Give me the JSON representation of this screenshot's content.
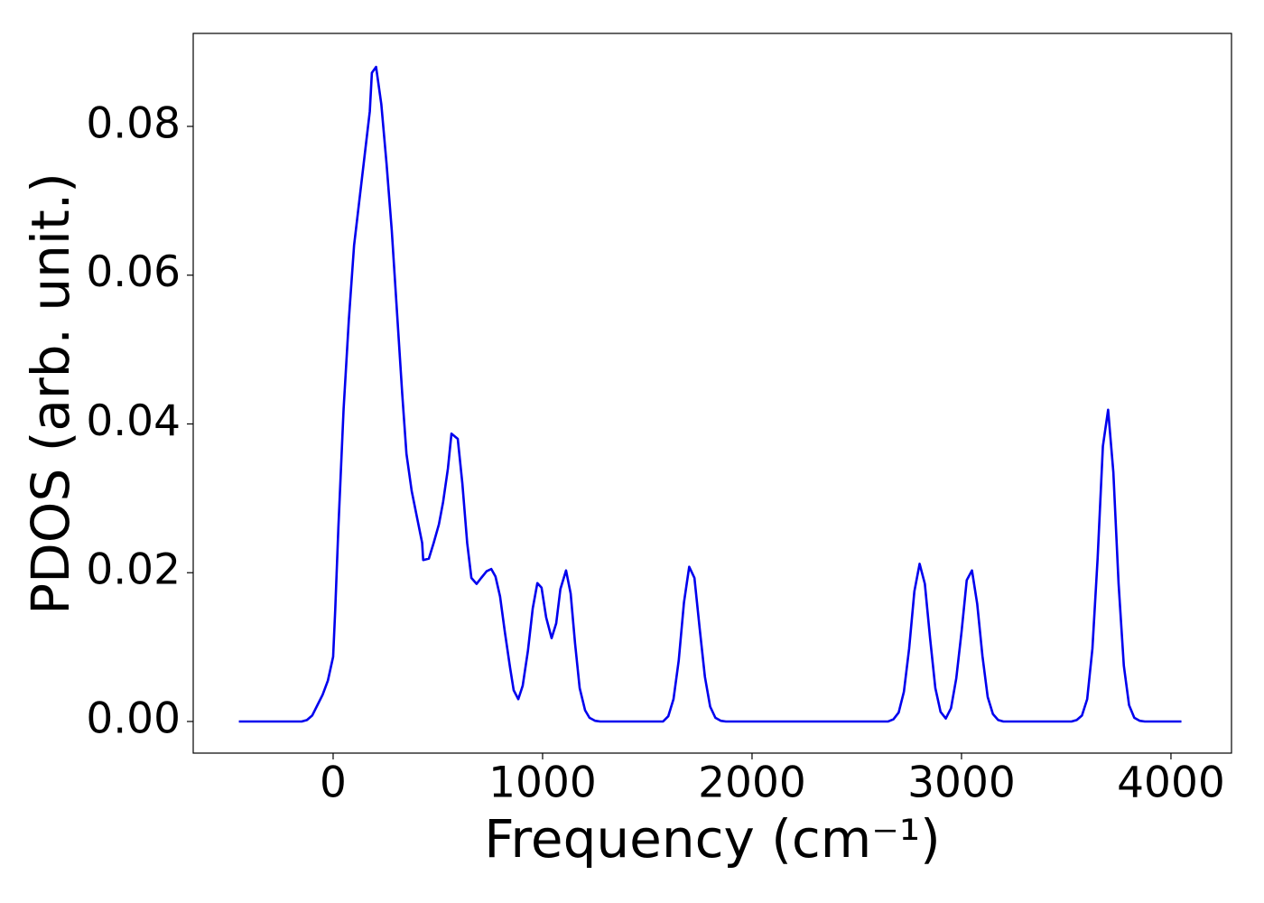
{
  "chart_data": {
    "type": "line",
    "xlabel": "Frequency (cm⁻¹)",
    "ylabel": "PDOS (arb. unit.)",
    "color": "#0000ee",
    "x": [
      -450,
      -150,
      -125,
      -100,
      -75,
      -50,
      -25,
      0,
      10,
      25,
      50,
      75,
      100,
      125,
      150,
      175,
      185,
      205,
      230,
      255,
      280,
      305,
      330,
      350,
      375,
      400,
      425,
      430,
      457,
      480,
      505,
      525,
      548,
      565,
      595,
      617,
      640,
      660,
      685,
      707,
      733,
      755,
      775,
      797,
      820,
      845,
      862,
      884,
      905,
      930,
      953,
      975,
      995,
      1017,
      1043,
      1065,
      1085,
      1112,
      1134,
      1155,
      1177,
      1203,
      1224,
      1250,
      1275,
      1575,
      1600,
      1625,
      1650,
      1675,
      1700,
      1725,
      1750,
      1775,
      1800,
      1825,
      1850,
      1875,
      2650,
      2675,
      2700,
      2725,
      2750,
      2775,
      2800,
      2825,
      2850,
      2875,
      2900,
      2925,
      2950,
      2975,
      3000,
      3025,
      3050,
      3075,
      3100,
      3125,
      3150,
      3175,
      3200,
      3525,
      3550,
      3575,
      3600,
      3625,
      3650,
      3675,
      3700,
      3725,
      3750,
      3775,
      3800,
      3825,
      3850,
      3875,
      4050
    ],
    "values": [
      0,
      0,
      0.0002,
      0.0008,
      0.0022,
      0.0036,
      0.0055,
      0.0087,
      0.015,
      0.026,
      0.042,
      0.054,
      0.064,
      0.07,
      0.076,
      0.082,
      0.0872,
      0.088,
      0.083,
      0.075,
      0.066,
      0.055,
      0.044,
      0.036,
      0.031,
      0.0275,
      0.024,
      0.0217,
      0.0219,
      0.024,
      0.0265,
      0.0295,
      0.034,
      0.0387,
      0.038,
      0.032,
      0.024,
      0.0193,
      0.0185,
      0.0193,
      0.0202,
      0.0205,
      0.0195,
      0.0168,
      0.012,
      0.0072,
      0.0042,
      0.003,
      0.0048,
      0.0095,
      0.0152,
      0.0186,
      0.018,
      0.014,
      0.0112,
      0.0132,
      0.0178,
      0.0203,
      0.0172,
      0.0105,
      0.0045,
      0.0015,
      0.0005,
      0.0001,
      0,
      0,
      0.0007,
      0.003,
      0.0082,
      0.016,
      0.0208,
      0.0193,
      0.0125,
      0.006,
      0.002,
      0.0005,
      0.0001,
      0,
      0,
      0.0003,
      0.0012,
      0.004,
      0.0098,
      0.0175,
      0.0212,
      0.0185,
      0.0112,
      0.0045,
      0.0013,
      0.0004,
      0.0018,
      0.0058,
      0.012,
      0.019,
      0.0203,
      0.0158,
      0.0088,
      0.0033,
      0.001,
      0.0002,
      0,
      0,
      0.0002,
      0.0008,
      0.003,
      0.0098,
      0.022,
      0.037,
      0.0419,
      0.0335,
      0.0185,
      0.0075,
      0.0022,
      0.0005,
      0.0001,
      0,
      0
    ],
    "xlim": [
      -668,
      4289
    ],
    "ylim": [
      -0.00425,
      0.0925
    ],
    "xticks": [
      0,
      1000,
      2000,
      3000,
      4000
    ],
    "yticks": [
      {
        "value": 0,
        "label": "0.00"
      },
      0.02,
      0.04,
      0.06,
      0.08
    ],
    "grid": false
  }
}
